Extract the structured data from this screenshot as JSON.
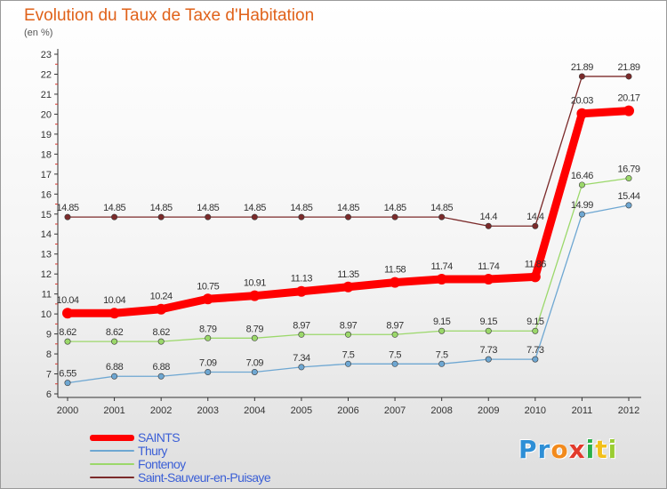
{
  "header": {
    "title": "Evolution du Taux de Taxe d'Habitation",
    "unit": "(en %)"
  },
  "logo": {
    "text": "Proxiti",
    "letter_colors": [
      "#2e8fd6",
      "#2e8fd6",
      "#f28a1c",
      "#e23a2c",
      "#2bb04a",
      "#f2c01c",
      "#9acd32"
    ]
  },
  "chart_data": {
    "type": "line",
    "x": [
      2000,
      2001,
      2002,
      2003,
      2004,
      2005,
      2006,
      2007,
      2008,
      2009,
      2010,
      2011,
      2012
    ],
    "ylim": [
      6,
      23
    ],
    "yticks": [
      6,
      7,
      8,
      9,
      10,
      11,
      12,
      13,
      14,
      15,
      16,
      17,
      18,
      19,
      20,
      21,
      22,
      23
    ],
    "grid": false,
    "legend_position": "bottom-left",
    "series": [
      {
        "name": "SAINTS",
        "color": "#ff0000",
        "values": [
          10.04,
          10.04,
          10.24,
          10.75,
          10.91,
          11.13,
          11.35,
          11.58,
          11.74,
          11.74,
          11.86,
          20.03,
          20.17
        ],
        "labels": [
          "10.04",
          "10.04",
          "10.24",
          "10.75",
          "10.91",
          "11.13",
          "11.35",
          "11.58",
          "11.74",
          "11.74",
          "11.86",
          "20.03",
          "20.17"
        ]
      },
      {
        "name": "Thury",
        "color": "#6ea7d2",
        "values": [
          6.55,
          6.88,
          6.88,
          7.09,
          7.09,
          7.34,
          7.5,
          7.5,
          7.5,
          7.73,
          7.73,
          14.99,
          15.44
        ],
        "labels": [
          "6.55",
          "6.88",
          "6.88",
          "7.09",
          "7.09",
          "7.34",
          "7.5",
          "7.5",
          "7.5",
          "7.73",
          "7.73",
          "14.99",
          "15.44"
        ]
      },
      {
        "name": "Fontenoy",
        "color": "#9bd86a",
        "values": [
          8.62,
          8.62,
          8.62,
          8.79,
          8.79,
          8.97,
          8.97,
          8.97,
          9.15,
          9.15,
          9.15,
          16.46,
          16.79
        ],
        "labels": [
          "8.62",
          "8.62",
          "8.62",
          "8.79",
          "8.79",
          "8.97",
          "8.97",
          "8.97",
          "9.15",
          "9.15",
          "9.15",
          "16.46",
          "16.79"
        ]
      },
      {
        "name": "Saint-Sauveur-en-Puisaye",
        "color": "#7b2a2a",
        "values": [
          14.85,
          14.85,
          14.85,
          14.85,
          14.85,
          14.85,
          14.85,
          14.85,
          14.85,
          14.4,
          14.4,
          21.89,
          21.89
        ],
        "labels": [
          "14.85",
          "14.85",
          "14.85",
          "14.85",
          "14.85",
          "14.85",
          "14.85",
          "14.85",
          "14.85",
          "14.4",
          "14.4",
          "21.89",
          "21.89"
        ]
      }
    ]
  }
}
